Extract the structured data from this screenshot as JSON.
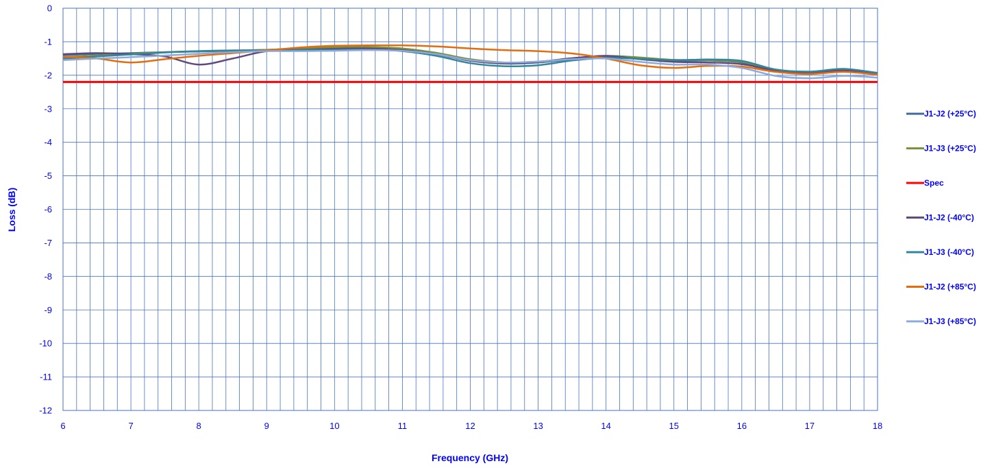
{
  "chart_data": {
    "type": "line",
    "title": "",
    "xlabel": "Frequency (GHz)",
    "ylabel": "Loss (dB)",
    "xlim": [
      6,
      18
    ],
    "ylim": [
      -12,
      0
    ],
    "x_ticks": [
      6,
      7,
      8,
      9,
      10,
      11,
      12,
      13,
      14,
      15,
      16,
      17,
      18
    ],
    "y_ticks": [
      0,
      -1,
      -2,
      -3,
      -4,
      -5,
      -6,
      -7,
      -8,
      -9,
      -10,
      -11,
      -12
    ],
    "x_minor_step": 0.2,
    "y_major_step": 1,
    "grid": true,
    "grid_color": "#4472c4",
    "text_color": "#0000ff",
    "legend_position": "right",
    "series": [
      {
        "name": "J1-J2 (+25°C)",
        "color": "#41689c",
        "x": [
          6,
          6.5,
          7,
          7.5,
          8,
          8.5,
          9,
          9.5,
          10,
          10.5,
          11,
          11.5,
          12,
          12.5,
          13,
          13.5,
          14,
          14.5,
          15,
          15.5,
          16,
          16.5,
          17,
          17.5,
          18
        ],
        "y": [
          -1.4,
          -1.36,
          -1.34,
          -1.31,
          -1.29,
          -1.27,
          -1.24,
          -1.2,
          -1.17,
          -1.17,
          -1.21,
          -1.34,
          -1.55,
          -1.65,
          -1.62,
          -1.52,
          -1.45,
          -1.5,
          -1.56,
          -1.56,
          -1.62,
          -1.85,
          -1.91,
          -1.85,
          -1.95
        ]
      },
      {
        "name": "J1-J3 (+25°C)",
        "color": "#77933c",
        "x": [
          6,
          6.5,
          7,
          7.5,
          8,
          8.5,
          9,
          9.5,
          10,
          10.5,
          11,
          11.5,
          12,
          12.5,
          13,
          13.5,
          14,
          14.5,
          15,
          15.5,
          16,
          16.5,
          17,
          17.5,
          18
        ],
        "y": [
          -1.46,
          -1.41,
          -1.36,
          -1.31,
          -1.28,
          -1.26,
          -1.24,
          -1.2,
          -1.16,
          -1.16,
          -1.2,
          -1.33,
          -1.52,
          -1.62,
          -1.6,
          -1.5,
          -1.42,
          -1.47,
          -1.54,
          -1.55,
          -1.6,
          -1.83,
          -1.9,
          -1.83,
          -1.93
        ]
      },
      {
        "name": "Spec",
        "color": "#ff0000",
        "x": [
          6,
          18
        ],
        "y": [
          -2.2,
          -2.2
        ]
      },
      {
        "name": "J1-J2 (-40°C)",
        "color": "#604a7b",
        "x": [
          6,
          6.5,
          7,
          7.5,
          8,
          8.5,
          9,
          9.5,
          10,
          10.5,
          11,
          11.5,
          12,
          12.5,
          13,
          13.5,
          14,
          14.5,
          15,
          15.5,
          16,
          16.5,
          17,
          17.5,
          18
        ],
        "y": [
          -1.37,
          -1.34,
          -1.37,
          -1.44,
          -1.68,
          -1.5,
          -1.28,
          -1.24,
          -1.21,
          -1.2,
          -1.25,
          -1.37,
          -1.57,
          -1.65,
          -1.6,
          -1.49,
          -1.42,
          -1.52,
          -1.6,
          -1.62,
          -1.67,
          -1.86,
          -1.92,
          -1.86,
          -1.96
        ]
      },
      {
        "name": "J1-J3 (-40°C)",
        "color": "#31859c",
        "x": [
          6,
          6.5,
          7,
          7.5,
          8,
          8.5,
          9,
          9.5,
          10,
          10.5,
          11,
          11.5,
          12,
          12.5,
          13,
          13.5,
          14,
          14.5,
          15,
          15.5,
          16,
          16.5,
          17,
          17.5,
          18
        ],
        "y": [
          -1.51,
          -1.44,
          -1.38,
          -1.32,
          -1.28,
          -1.26,
          -1.26,
          -1.25,
          -1.24,
          -1.24,
          -1.28,
          -1.42,
          -1.64,
          -1.73,
          -1.7,
          -1.56,
          -1.48,
          -1.51,
          -1.55,
          -1.53,
          -1.57,
          -1.83,
          -1.89,
          -1.81,
          -1.93
        ]
      },
      {
        "name": "J1-J2 (+85°C)",
        "color": "#e46c0a",
        "x": [
          6,
          6.5,
          7,
          7.5,
          8,
          8.5,
          9,
          9.5,
          10,
          10.5,
          11,
          11.5,
          12,
          12.5,
          13,
          13.5,
          14,
          14.5,
          15,
          15.5,
          16,
          16.5,
          17,
          17.5,
          18
        ],
        "y": [
          -1.45,
          -1.5,
          -1.62,
          -1.52,
          -1.42,
          -1.34,
          -1.26,
          -1.17,
          -1.12,
          -1.11,
          -1.11,
          -1.14,
          -1.2,
          -1.25,
          -1.28,
          -1.35,
          -1.5,
          -1.7,
          -1.78,
          -1.72,
          -1.74,
          -1.9,
          -1.96,
          -1.9,
          -1.98
        ]
      },
      {
        "name": "J1-J3 (+85°C)",
        "color": "#8ea9db",
        "x": [
          6,
          6.5,
          7,
          7.5,
          8,
          8.5,
          9,
          9.5,
          10,
          10.5,
          11,
          11.5,
          12,
          12.5,
          13,
          13.5,
          14,
          14.5,
          15,
          15.5,
          16,
          16.5,
          17,
          17.5,
          18
        ],
        "y": [
          -1.55,
          -1.5,
          -1.46,
          -1.41,
          -1.36,
          -1.31,
          -1.28,
          -1.28,
          -1.27,
          -1.25,
          -1.27,
          -1.37,
          -1.55,
          -1.62,
          -1.59,
          -1.52,
          -1.5,
          -1.6,
          -1.68,
          -1.68,
          -1.78,
          -2.02,
          -2.09,
          -2.02,
          -2.07
        ]
      }
    ]
  }
}
